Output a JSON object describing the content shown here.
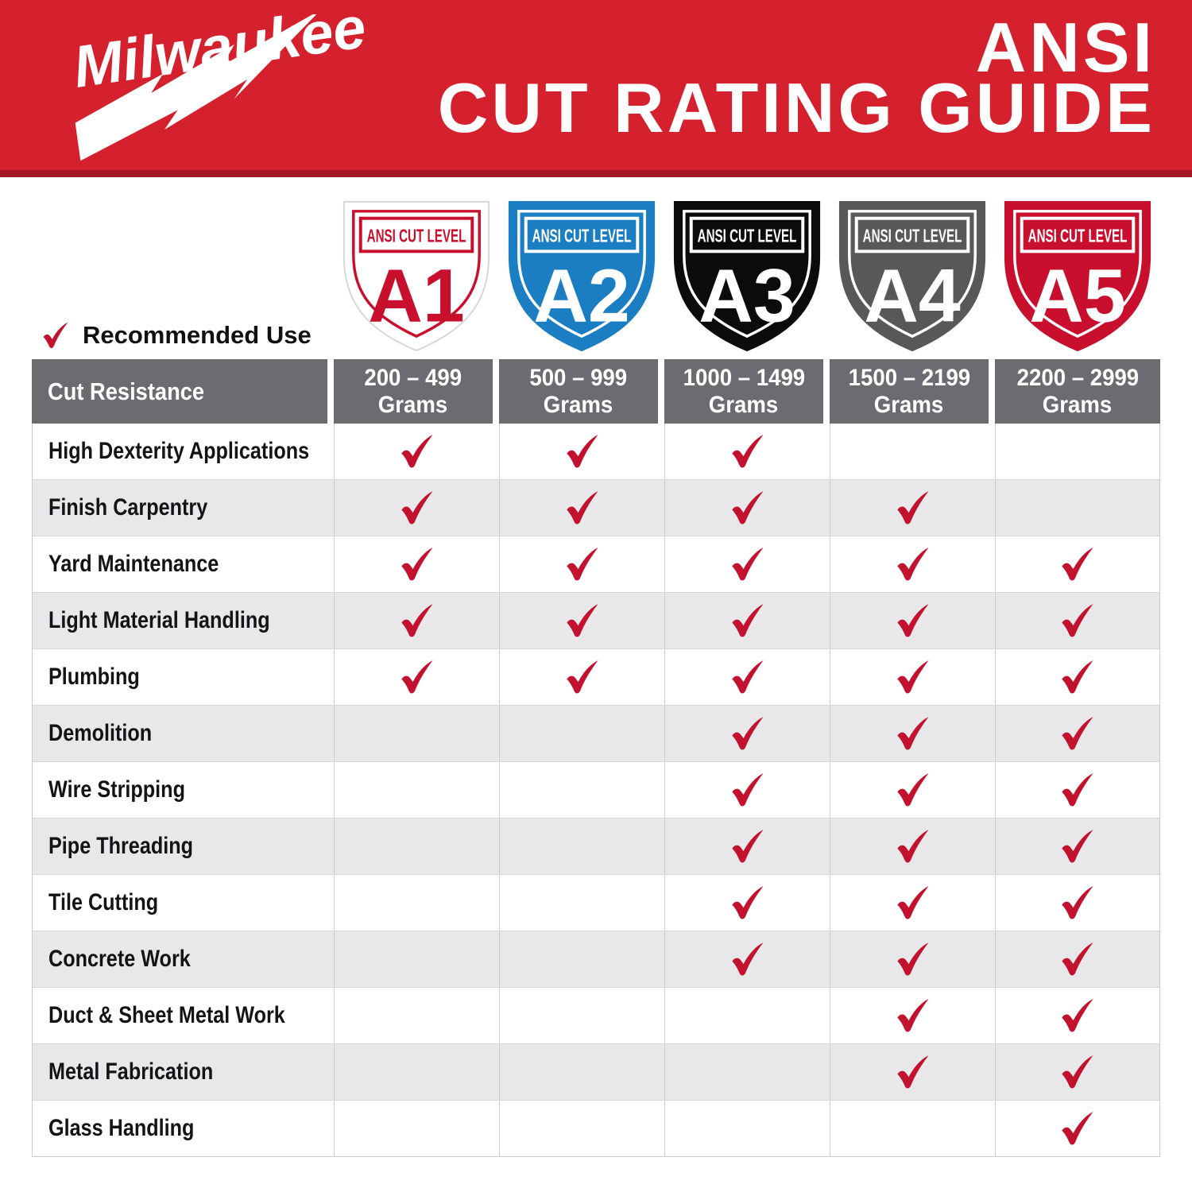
{
  "banner": {
    "brand": "Milwaukee",
    "registered_mark": "®",
    "title_line1": "ANSI",
    "title_line2": "CUT RATING GUIDE"
  },
  "shields": [
    {
      "level": "A1",
      "banner_label": "ANSI CUT LEVEL",
      "fill": "#FFFFFF",
      "accent": "#C8102E",
      "outline": "#D7D7D7"
    },
    {
      "level": "A2",
      "banner_label": "ANSI CUT LEVEL",
      "fill": "#1B7EC2",
      "accent": "#FFFFFF",
      "outline": "#1B7EC2"
    },
    {
      "level": "A3",
      "banner_label": "ANSI CUT LEVEL",
      "fill": "#0B0B0B",
      "accent": "#FFFFFF",
      "outline": "#0B0B0B"
    },
    {
      "level": "A4",
      "banner_label": "ANSI CUT LEVEL",
      "fill": "#57585A",
      "accent": "#FFFFFF",
      "outline": "#57585A"
    },
    {
      "level": "A5",
      "banner_label": "ANSI CUT LEVEL",
      "fill": "#C8102E",
      "accent": "#FFFFFF",
      "outline": "#C8102E"
    }
  ],
  "legend": {
    "label": "Recommended Use"
  },
  "table": {
    "corner_label": "Cut Resistance",
    "columns": [
      {
        "range": "200 – 499",
        "unit": "Grams"
      },
      {
        "range": "500 – 999",
        "unit": "Grams"
      },
      {
        "range": "1000 – 1499",
        "unit": "Grams"
      },
      {
        "range": "1500 – 2199",
        "unit": "Grams"
      },
      {
        "range": "2200 – 2999",
        "unit": "Grams"
      }
    ],
    "rows": [
      {
        "label": "High Dexterity Applications",
        "checks": [
          true,
          true,
          true,
          false,
          false
        ]
      },
      {
        "label": "Finish Carpentry",
        "checks": [
          true,
          true,
          true,
          true,
          false
        ]
      },
      {
        "label": "Yard Maintenance",
        "checks": [
          true,
          true,
          true,
          true,
          true
        ]
      },
      {
        "label": "Light Material Handling",
        "checks": [
          true,
          true,
          true,
          true,
          true
        ]
      },
      {
        "label": "Plumbing",
        "checks": [
          true,
          true,
          true,
          true,
          true
        ]
      },
      {
        "label": "Demolition",
        "checks": [
          false,
          false,
          true,
          true,
          true
        ]
      },
      {
        "label": "Wire Stripping",
        "checks": [
          false,
          false,
          true,
          true,
          true
        ]
      },
      {
        "label": "Pipe Threading",
        "checks": [
          false,
          false,
          true,
          true,
          true
        ]
      },
      {
        "label": "Tile Cutting",
        "checks": [
          false,
          false,
          true,
          true,
          true
        ]
      },
      {
        "label": "Concrete Work",
        "checks": [
          false,
          false,
          true,
          true,
          true
        ]
      },
      {
        "label": "Duct & Sheet Metal Work",
        "checks": [
          false,
          false,
          false,
          true,
          true
        ]
      },
      {
        "label": "Metal Fabrication",
        "checks": [
          false,
          false,
          false,
          true,
          true
        ]
      },
      {
        "label": "Glass Handling",
        "checks": [
          false,
          false,
          false,
          false,
          true
        ]
      }
    ]
  },
  "colors": {
    "banner_red": "#D5202E",
    "banner_red_dark": "#A31723",
    "check_red": "#C2122D",
    "header_gray": "#6B6C70",
    "row_alt_gray": "#E8E8EB",
    "shield_a1": "#FFFFFF",
    "shield_a2": "#1B7EC2",
    "shield_a3": "#0B0B0B",
    "shield_a4": "#57585A",
    "shield_a5": "#C8102E"
  }
}
